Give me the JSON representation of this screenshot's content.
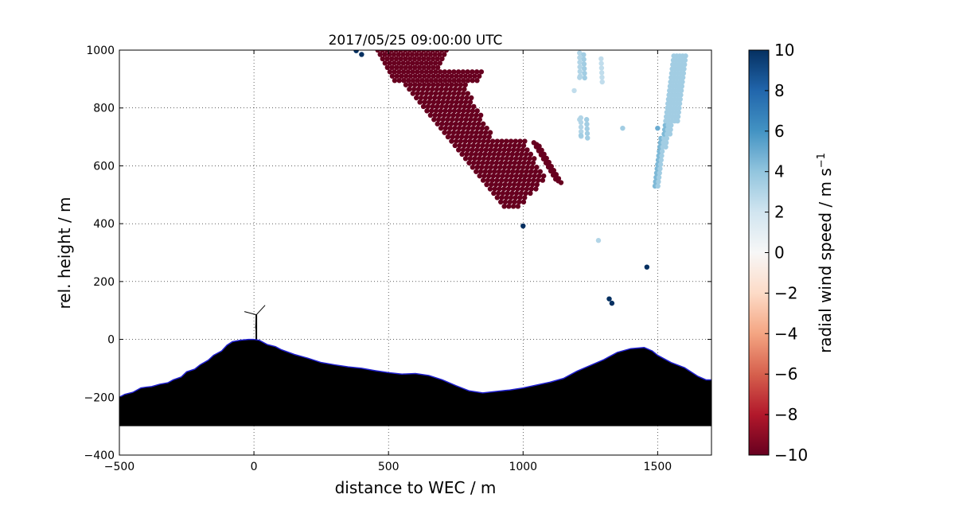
{
  "chart_data": {
    "type": "scatter",
    "title": "2017/05/25 09:00:00 UTC",
    "xlabel": "distance to WEC / m",
    "ylabel": "rel. height / m",
    "xlim": [
      -500,
      1700
    ],
    "ylim": [
      -400,
      1000
    ],
    "xticks": [
      -500,
      0,
      500,
      1000,
      1500
    ],
    "yticks": [
      -400,
      -200,
      0,
      200,
      400,
      600,
      800,
      1000
    ],
    "xtick_labels": [
      "−500",
      "0",
      "500",
      "1000",
      "1500"
    ],
    "ytick_labels": [
      "−400",
      "−200",
      "0",
      "200",
      "400",
      "600",
      "800",
      "1000"
    ],
    "grid": true,
    "colorbar": {
      "label_main": "radial wind speed / m s",
      "label_exp": "−1",
      "range": [
        -10,
        10
      ],
      "ticks": [
        10,
        8,
        6,
        4,
        2,
        0,
        -2,
        -4,
        -6,
        -8,
        -10
      ],
      "tick_labels": [
        "10",
        "8",
        "6",
        "4",
        "2",
        "0",
        "−2",
        "−4",
        "−6",
        "−8",
        "−10"
      ],
      "colormap": "RdBu"
    },
    "terrain_base": -300,
    "terrain": [
      [
        -500,
        -200
      ],
      [
        -480,
        -190
      ],
      [
        -450,
        -183
      ],
      [
        -420,
        -168
      ],
      [
        -400,
        -165
      ],
      [
        -380,
        -163
      ],
      [
        -350,
        -155
      ],
      [
        -320,
        -150
      ],
      [
        -300,
        -140
      ],
      [
        -270,
        -130
      ],
      [
        -250,
        -112
      ],
      [
        -220,
        -103
      ],
      [
        -200,
        -88
      ],
      [
        -170,
        -72
      ],
      [
        -150,
        -55
      ],
      [
        -120,
        -40
      ],
      [
        -100,
        -20
      ],
      [
        -80,
        -8
      ],
      [
        -50,
        -3
      ],
      [
        -20,
        0
      ],
      [
        0,
        0
      ],
      [
        20,
        -3
      ],
      [
        50,
        -18
      ],
      [
        80,
        -25
      ],
      [
        100,
        -35
      ],
      [
        150,
        -52
      ],
      [
        200,
        -65
      ],
      [
        250,
        -80
      ],
      [
        300,
        -88
      ],
      [
        350,
        -95
      ],
      [
        400,
        -100
      ],
      [
        450,
        -108
      ],
      [
        500,
        -115
      ],
      [
        550,
        -120
      ],
      [
        600,
        -118
      ],
      [
        650,
        -125
      ],
      [
        700,
        -140
      ],
      [
        750,
        -160
      ],
      [
        800,
        -178
      ],
      [
        850,
        -185
      ],
      [
        900,
        -180
      ],
      [
        950,
        -175
      ],
      [
        1000,
        -168
      ],
      [
        1050,
        -158
      ],
      [
        1100,
        -148
      ],
      [
        1150,
        -135
      ],
      [
        1200,
        -110
      ],
      [
        1250,
        -90
      ],
      [
        1300,
        -70
      ],
      [
        1350,
        -45
      ],
      [
        1400,
        -32
      ],
      [
        1450,
        -28
      ],
      [
        1480,
        -40
      ],
      [
        1500,
        -55
      ],
      [
        1550,
        -80
      ],
      [
        1600,
        -98
      ],
      [
        1650,
        -128
      ],
      [
        1680,
        -140
      ],
      [
        1700,
        -140
      ]
    ],
    "turbine": {
      "x": 0,
      "hub_height": 85
    },
    "clusters": [
      {
        "x_start": 460,
        "x_end": 1120,
        "y_top": 1000,
        "y_bottom": 460,
        "value": -10
      },
      {
        "x_start": 1480,
        "x_end": 1600,
        "y_top": 980,
        "y_bottom": 530,
        "value": 3.5
      },
      {
        "x_start": 1200,
        "x_end": 1320,
        "y_top": 990,
        "y_bottom": 700,
        "value": 3
      }
    ],
    "points": [
      {
        "x": 380,
        "y": 998,
        "v": 10
      },
      {
        "x": 400,
        "y": 985,
        "v": 10
      },
      {
        "x": 1000,
        "y": 392,
        "v": 10
      },
      {
        "x": 1460,
        "y": 250,
        "v": 10
      },
      {
        "x": 1320,
        "y": 140,
        "v": 10
      },
      {
        "x": 1330,
        "y": 125,
        "v": 10
      },
      {
        "x": 1280,
        "y": 342,
        "v": 3
      },
      {
        "x": 1370,
        "y": 730,
        "v": 3.5
      },
      {
        "x": 1190,
        "y": 860,
        "v": 2.5
      },
      {
        "x": 1210,
        "y": 905,
        "v": 3
      },
      {
        "x": 1210,
        "y": 760,
        "v": 3
      },
      {
        "x": 1215,
        "y": 705,
        "v": 3.5
      },
      {
        "x": 1500,
        "y": 730,
        "v": 5
      }
    ]
  }
}
